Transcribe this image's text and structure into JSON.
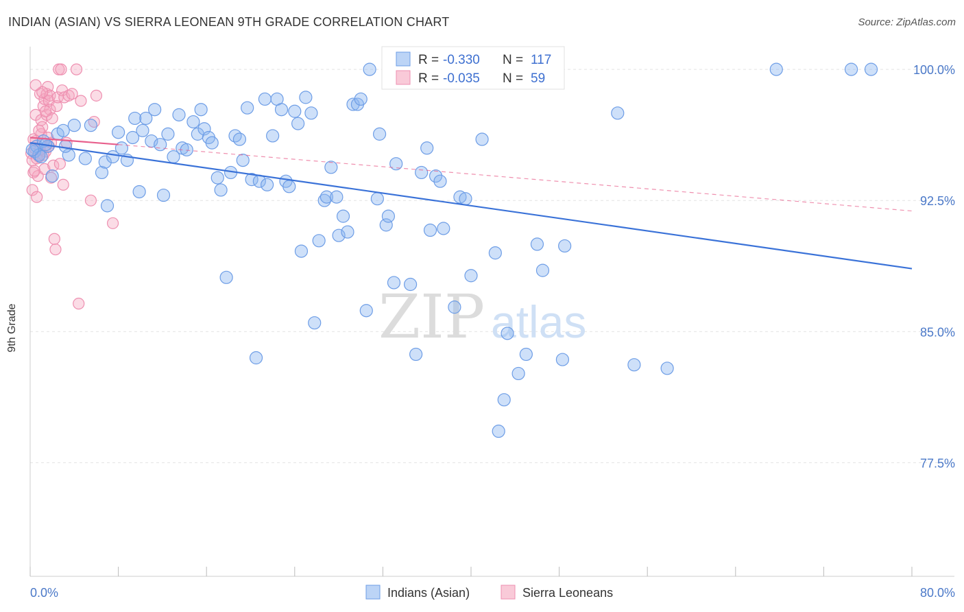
{
  "title": "INDIAN (ASIAN) VS SIERRA LEONEAN 9TH GRADE CORRELATION CHART",
  "source": "Source: ZipAtlas.com",
  "watermark": {
    "part1": "ZIP",
    "part2": "atlas"
  },
  "chart_data": {
    "type": "scatter",
    "ylabel": "9th Grade",
    "xlim": [
      0,
      80
    ],
    "ylim": [
      71,
      101.3
    ],
    "x_tick_labels": [
      "0.0%",
      "80.0%"
    ],
    "y_ticks": [
      {
        "value": 100.0,
        "label": "100.0%"
      },
      {
        "value": 92.5,
        "label": "92.5%"
      },
      {
        "value": 85.0,
        "label": "85.0%"
      },
      {
        "value": 77.5,
        "label": "77.5%"
      }
    ],
    "grid": true,
    "legend_position": "bottom-center",
    "stats": [
      {
        "r_label": "R =",
        "r_value": "-0.330",
        "n_label": "N =",
        "n_value": "117"
      },
      {
        "r_label": "R =",
        "r_value": "-0.035",
        "n_label": "N =",
        "n_value": "59"
      }
    ],
    "series": [
      {
        "name": "Indians (Asian)",
        "color": "#8ab4f0",
        "line_color": "#3a72d8",
        "trend": {
          "x0": 0,
          "y0": 95.8,
          "x1": 80,
          "y1": 88.6
        },
        "points": [
          [
            0.4,
            95.3
          ],
          [
            0.6,
            95.6
          ],
          [
            0.8,
            95.1
          ],
          [
            1.0,
            95.0
          ],
          [
            1.2,
            95.9
          ],
          [
            1.6,
            95.6
          ],
          [
            2.0,
            93.9
          ],
          [
            2.5,
            96.3
          ],
          [
            3.0,
            96.5
          ],
          [
            3.5,
            95.1
          ],
          [
            4.0,
            96.8
          ],
          [
            5.0,
            94.9
          ],
          [
            5.5,
            96.8
          ],
          [
            6.5,
            94.1
          ],
          [
            6.8,
            94.7
          ],
          [
            7.0,
            92.2
          ],
          [
            7.5,
            95.0
          ],
          [
            8.0,
            96.4
          ],
          [
            8.3,
            95.5
          ],
          [
            8.8,
            94.8
          ],
          [
            9.3,
            96.1
          ],
          [
            9.5,
            97.2
          ],
          [
            9.9,
            93.0
          ],
          [
            10.2,
            96.5
          ],
          [
            10.5,
            97.2
          ],
          [
            11.0,
            95.9
          ],
          [
            11.3,
            97.7
          ],
          [
            11.8,
            95.7
          ],
          [
            12.1,
            92.8
          ],
          [
            12.5,
            96.3
          ],
          [
            13.0,
            95.0
          ],
          [
            13.5,
            97.4
          ],
          [
            13.8,
            95.5
          ],
          [
            14.2,
            95.4
          ],
          [
            14.8,
            97.0
          ],
          [
            15.2,
            96.3
          ],
          [
            15.5,
            97.7
          ],
          [
            15.8,
            96.6
          ],
          [
            16.2,
            96.1
          ],
          [
            16.5,
            95.8
          ],
          [
            17.0,
            93.8
          ],
          [
            17.3,
            93.1
          ],
          [
            17.8,
            88.1
          ],
          [
            18.2,
            94.1
          ],
          [
            18.6,
            96.2
          ],
          [
            19.0,
            96.0
          ],
          [
            19.3,
            94.8
          ],
          [
            19.7,
            97.8
          ],
          [
            20.1,
            93.7
          ],
          [
            20.5,
            83.5
          ],
          [
            20.8,
            93.6
          ],
          [
            21.3,
            98.3
          ],
          [
            21.5,
            93.4
          ],
          [
            22.0,
            96.2
          ],
          [
            22.4,
            98.3
          ],
          [
            22.8,
            97.7
          ],
          [
            23.2,
            93.6
          ],
          [
            23.5,
            93.3
          ],
          [
            24.0,
            97.6
          ],
          [
            24.3,
            96.9
          ],
          [
            24.6,
            89.6
          ],
          [
            25.0,
            98.4
          ],
          [
            25.5,
            97.5
          ],
          [
            25.8,
            85.5
          ],
          [
            26.2,
            90.2
          ],
          [
            26.7,
            92.5
          ],
          [
            26.9,
            92.7
          ],
          [
            27.3,
            94.4
          ],
          [
            27.8,
            92.7
          ],
          [
            28.0,
            90.5
          ],
          [
            28.4,
            91.6
          ],
          [
            28.8,
            90.7
          ],
          [
            29.3,
            98.0
          ],
          [
            29.7,
            98.0
          ],
          [
            30.0,
            98.3
          ],
          [
            30.5,
            86.2
          ],
          [
            30.8,
            100.0
          ],
          [
            31.5,
            92.6
          ],
          [
            31.7,
            96.3
          ],
          [
            32.3,
            91.1
          ],
          [
            32.5,
            91.6
          ],
          [
            33.0,
            87.8
          ],
          [
            33.2,
            94.6
          ],
          [
            34.5,
            87.7
          ],
          [
            35.0,
            83.7
          ],
          [
            35.5,
            94.1
          ],
          [
            36.0,
            95.5
          ],
          [
            36.3,
            90.8
          ],
          [
            36.8,
            93.9
          ],
          [
            37.2,
            93.6
          ],
          [
            37.5,
            90.9
          ],
          [
            38.5,
            86.4
          ],
          [
            39.0,
            92.7
          ],
          [
            39.5,
            92.6
          ],
          [
            40.0,
            88.2
          ],
          [
            41.0,
            96.0
          ],
          [
            42.2,
            89.5
          ],
          [
            42.5,
            79.3
          ],
          [
            43.0,
            81.1
          ],
          [
            43.3,
            84.9
          ],
          [
            44.3,
            82.6
          ],
          [
            45.0,
            83.7
          ],
          [
            46.0,
            90.0
          ],
          [
            46.5,
            88.5
          ],
          [
            47.3,
            100.0
          ],
          [
            48.3,
            83.4
          ],
          [
            48.5,
            89.9
          ],
          [
            53.3,
            97.5
          ],
          [
            54.8,
            83.1
          ],
          [
            57.8,
            82.9
          ],
          [
            67.7,
            100.0
          ],
          [
            74.5,
            100.0
          ],
          [
            76.3,
            100.0
          ],
          [
            1.4,
            95.7
          ],
          [
            0.2,
            95.4
          ],
          [
            3.2,
            95.6
          ]
        ]
      },
      {
        "name": "Sierra Leoneans",
        "color": "#f4a8c0",
        "line_color": "#e85f8c",
        "trend": {
          "x0": 0,
          "y0": 96.1,
          "x1": 8,
          "y1": 95.7
        },
        "trend_extension": {
          "x0": 8,
          "y0": 95.7,
          "x1": 80,
          "y1": 91.9
        },
        "points": [
          [
            0.1,
            95.2
          ],
          [
            0.2,
            94.8
          ],
          [
            0.2,
            93.1
          ],
          [
            0.3,
            94.1
          ],
          [
            0.4,
            95.5
          ],
          [
            0.5,
            95.9
          ],
          [
            0.5,
            97.4
          ],
          [
            0.6,
            92.7
          ],
          [
            0.7,
            93.9
          ],
          [
            0.8,
            95.0
          ],
          [
            0.9,
            98.6
          ],
          [
            1.0,
            96.3
          ],
          [
            1.0,
            97.1
          ],
          [
            1.1,
            96.7
          ],
          [
            1.2,
            97.9
          ],
          [
            1.3,
            98.3
          ],
          [
            1.3,
            94.3
          ],
          [
            1.4,
            95.3
          ],
          [
            1.5,
            98.6
          ],
          [
            1.5,
            97.4
          ],
          [
            1.6,
            99.0
          ],
          [
            1.6,
            96.1
          ],
          [
            1.7,
            98.2
          ],
          [
            1.8,
            98.5
          ],
          [
            1.8,
            97.7
          ],
          [
            1.9,
            95.8
          ],
          [
            2.0,
            97.2
          ],
          [
            2.1,
            94.5
          ],
          [
            2.2,
            90.3
          ],
          [
            2.3,
            89.7
          ],
          [
            2.4,
            97.9
          ],
          [
            2.5,
            98.4
          ],
          [
            2.6,
            100.0
          ],
          [
            2.8,
            100.0
          ],
          [
            2.9,
            98.8
          ],
          [
            3.0,
            93.4
          ],
          [
            3.1,
            98.4
          ],
          [
            3.3,
            95.8
          ],
          [
            3.5,
            98.5
          ],
          [
            3.8,
            98.6
          ],
          [
            4.2,
            100.0
          ],
          [
            4.4,
            86.6
          ],
          [
            4.6,
            98.2
          ],
          [
            5.5,
            92.5
          ],
          [
            5.8,
            97.0
          ],
          [
            6.0,
            98.5
          ],
          [
            7.5,
            91.2
          ],
          [
            0.3,
            96.0
          ],
          [
            0.6,
            94.9
          ],
          [
            0.9,
            95.4
          ],
          [
            1.2,
            95.1
          ],
          [
            0.4,
            94.2
          ],
          [
            0.8,
            96.5
          ],
          [
            1.9,
            93.8
          ],
          [
            2.7,
            94.6
          ],
          [
            1.1,
            98.7
          ],
          [
            1.7,
            95.6
          ],
          [
            0.5,
            99.1
          ],
          [
            1.4,
            97.6
          ]
        ]
      }
    ]
  }
}
